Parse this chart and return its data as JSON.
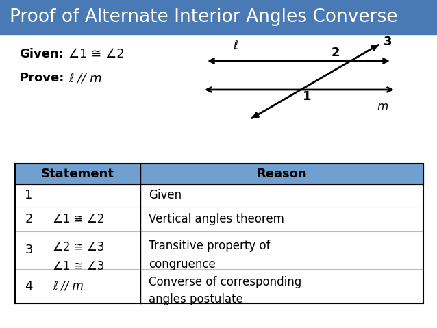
{
  "title": "Proof of Alternate Interior Angles Converse",
  "title_bg": "#4a7ab5",
  "title_color": "white",
  "title_fontsize": 19,
  "bg_color": "white",
  "header_bg": "#6fa0d0",
  "angle_sym": "∠",
  "cong_sym": "≅",
  "ell": "ℓ",
  "row_data": [
    {
      "num": "1",
      "stmt_lines": [
        ""
      ],
      "rsn_lines": [
        "Given"
      ]
    },
    {
      "num": "2",
      "stmt_lines": [
        "∠1 ≅ ∠2"
      ],
      "rsn_lines": [
        "Vertical angles theorem"
      ]
    },
    {
      "num": "3",
      "stmt_lines": [
        "∠2 ≅ ∠3",
        "∠1 ≅ ∠3"
      ],
      "rsn_lines": [
        "Transitive property of",
        "congruence"
      ]
    },
    {
      "num": "4",
      "stmt_lines": [
        "ℓ // m"
      ],
      "rsn_lines": [
        "Converse of corresponding",
        "angles postulate"
      ]
    }
  ]
}
